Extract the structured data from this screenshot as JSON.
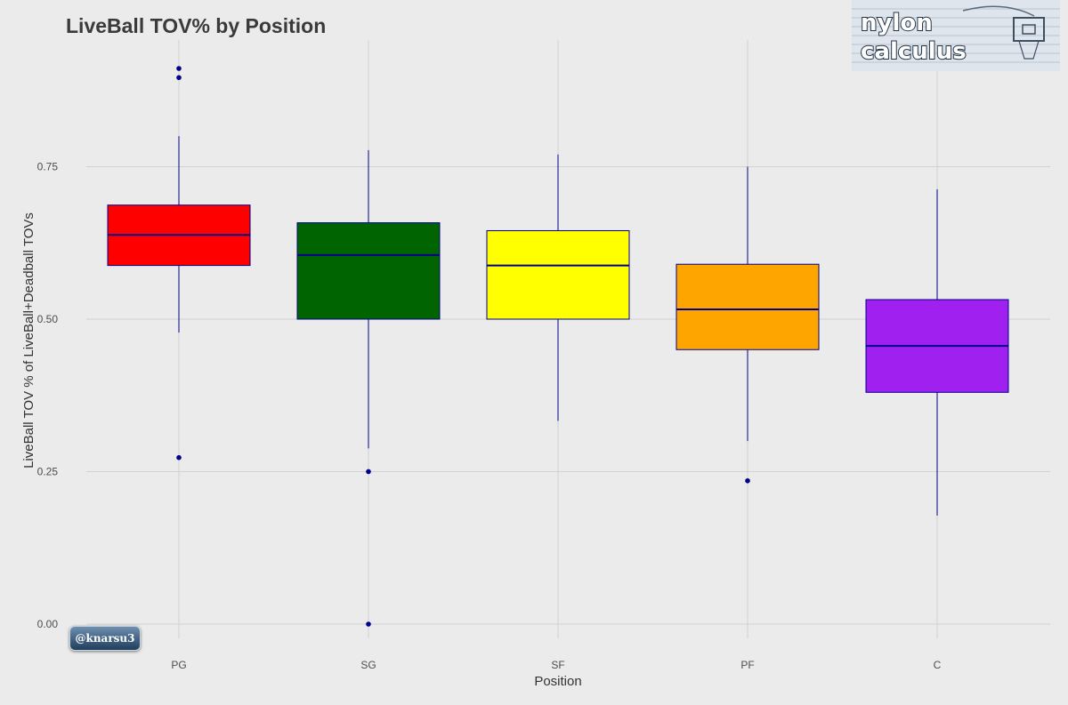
{
  "title": "LiveBall TOV% by Position",
  "watermark": {
    "logo_text": "nylon calculus",
    "handle": "@knarsu3"
  },
  "chart_data": {
    "type": "boxplot",
    "title": "LiveBall TOV% by Position",
    "xlabel": "Position",
    "ylabel": "LiveBall TOV % of LiveBall+Deadball TOVs",
    "categories": [
      "PG",
      "SG",
      "SF",
      "PF",
      "C"
    ],
    "ylim": [
      -0.02,
      0.92
    ],
    "yticks": [
      0.0,
      0.25,
      0.5,
      0.75
    ],
    "ytick_labels": [
      "0.00",
      "0.25",
      "0.50",
      "0.75"
    ],
    "grid": true,
    "legend": "none",
    "line_color": "#00008b",
    "boxes": [
      {
        "category": "PG",
        "whisker_low": 0.478,
        "q1": 0.588,
        "median": 0.638,
        "q3": 0.687,
        "whisker_high": 0.8,
        "outliers": [
          0.911,
          0.896,
          0.273
        ],
        "fill": "#ff0000"
      },
      {
        "category": "SG",
        "whisker_low": 0.288,
        "q1": 0.5,
        "median": 0.605,
        "q3": 0.658,
        "whisker_high": 0.777,
        "outliers": [
          0.25,
          0.0
        ],
        "fill": "#006400"
      },
      {
        "category": "SF",
        "whisker_low": 0.333,
        "q1": 0.5,
        "median": 0.588,
        "q3": 0.645,
        "whisker_high": 0.77,
        "outliers": [],
        "fill": "#ffff00"
      },
      {
        "category": "PF",
        "whisker_low": 0.3,
        "q1": 0.45,
        "median": 0.516,
        "q3": 0.59,
        "whisker_high": 0.75,
        "outliers": [
          0.235
        ],
        "fill": "#ffa500"
      },
      {
        "category": "C",
        "whisker_low": 0.178,
        "q1": 0.38,
        "median": 0.456,
        "q3": 0.532,
        "whisker_high": 0.713,
        "outliers": [],
        "fill": "#a020f0"
      }
    ]
  }
}
